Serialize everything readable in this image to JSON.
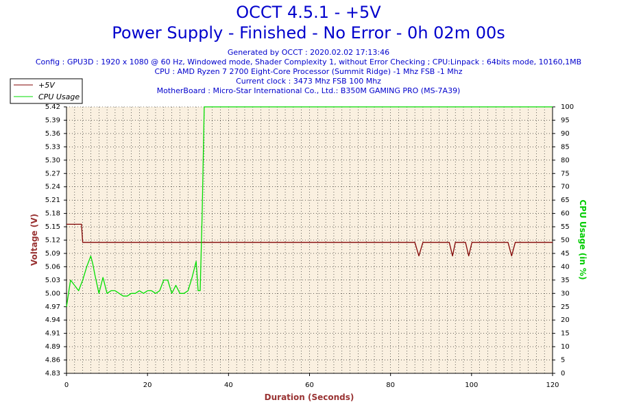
{
  "header": {
    "title": "OCCT 4.5.1 - +5V",
    "subtitle": "Power Supply - Finished - No Error - 0h 02m 00s",
    "info_lines": [
      "Generated by OCCT : 2020.02.02 17:13:46",
      "Config : GPU3D : 1920 x 1080 @ 60 Hz, Windowed mode, Shader Complexity 1, without Error Checking ; CPU:Linpack : 64bits mode, 10160,1MB",
      "CPU : AMD Ryzen 7 2700 Eight-Core Processor (Summit Ridge) -1 Mhz FSB -1 Mhz",
      "Current clock : 3473 Mhz FSB 100 Mhz",
      "MotherBoard : Micro-Star International Co., Ltd.: B350M GAMING PRO (MS-7A39)"
    ]
  },
  "colors": {
    "plot_bg": "#faf0e0",
    "voltage": "#800000",
    "cpu": "#00dd00",
    "axis_label_left": "#993333",
    "axis_label_right": "#00cc00",
    "axis_label_x": "#993333",
    "title": "#0000cc"
  },
  "chart_data": {
    "type": "line",
    "xlabel": "Duration (Seconds)",
    "ylabel_left": "Voltage (V)",
    "ylabel_right": "CPU Usage (in %)",
    "xlim": [
      0,
      120
    ],
    "ylim_left": [
      4.83,
      5.42
    ],
    "ylim_right": [
      0,
      100
    ],
    "x_ticks": [
      "0",
      "20",
      "40",
      "60",
      "80",
      "100",
      "120"
    ],
    "y_ticks_left": [
      "4.83",
      "4.86",
      "4.89",
      "4.91",
      "4.94",
      "4.97",
      "5.00",
      "5.03",
      "5.06",
      "5.09",
      "5.12",
      "5.15",
      "5.18",
      "5.21",
      "5.24",
      "5.27",
      "5.30",
      "5.33",
      "5.36",
      "5.39",
      "5.42"
    ],
    "y_ticks_right": [
      "0",
      "5",
      "10",
      "15",
      "20",
      "25",
      "30",
      "35",
      "40",
      "45",
      "50",
      "55",
      "60",
      "65",
      "70",
      "75",
      "80",
      "85",
      "90",
      "95",
      "100"
    ],
    "legend": [
      "+5V",
      "CPU Usage"
    ],
    "legend_position": "top-left",
    "grid": true,
    "series": [
      {
        "name": "+5V",
        "axis": "left",
        "x": [
          0,
          3.7,
          4,
          86,
          87,
          88,
          94.5,
          95.3,
          96,
          98.5,
          99.3,
          100.1,
          104.5,
          109,
          109.9,
          110.8,
          120
        ],
        "y": [
          5.16,
          5.16,
          5.12,
          5.12,
          5.09,
          5.12,
          5.12,
          5.09,
          5.12,
          5.12,
          5.09,
          5.12,
          5.12,
          5.12,
          5.09,
          5.12,
          5.12
        ]
      },
      {
        "name": "CPU Usage",
        "axis": "right",
        "x": [
          0,
          1,
          2,
          3,
          4,
          5,
          6,
          6.5,
          7,
          8,
          9,
          10,
          11,
          12,
          13,
          14,
          15,
          16,
          17,
          18,
          19,
          20,
          21,
          22,
          23,
          24,
          25,
          26,
          27,
          28,
          29,
          30,
          31,
          32,
          32.5,
          33,
          33.5,
          34,
          120
        ],
        "y": [
          25,
          35,
          33,
          31,
          35,
          40,
          44,
          41,
          37,
          30,
          36,
          30,
          31,
          31,
          30,
          29,
          29,
          30,
          30,
          31,
          30,
          31,
          31,
          30,
          31,
          35,
          35,
          30,
          33,
          30,
          30,
          31,
          36,
          42,
          31,
          31,
          60,
          100,
          100
        ]
      }
    ]
  }
}
